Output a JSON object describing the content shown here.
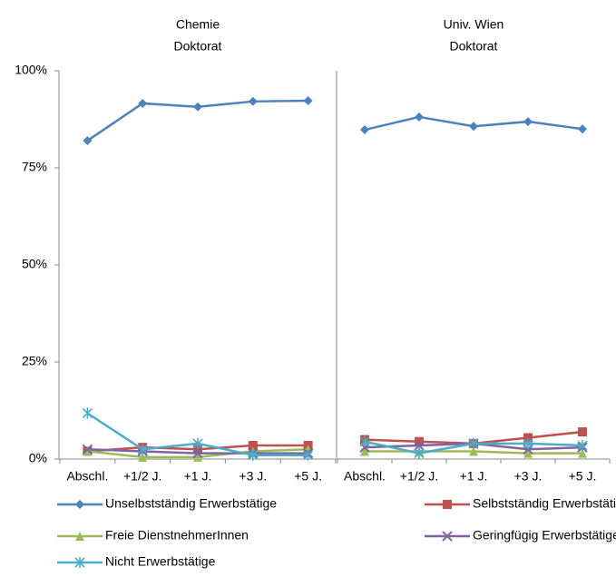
{
  "chart_data": [
    {
      "type": "line",
      "title": [
        "Chemie",
        "Doktorat"
      ],
      "categories": [
        "Abschl.",
        "+1/2 J.",
        "+1 J.",
        "+3 J.",
        "+5 J."
      ],
      "ylim": [
        0,
        100
      ],
      "yticks": [
        {
          "value": 0,
          "label": "0%"
        },
        {
          "value": 25,
          "label": "25%"
        },
        {
          "value": 50,
          "label": "50%"
        },
        {
          "value": 75,
          "label": "75%"
        },
        {
          "value": 100,
          "label": "100%"
        }
      ],
      "series": [
        {
          "name": "Unselbstständig Erwerbstätige",
          "color": "#4F81BD",
          "marker": "diamond",
          "values": [
            82.0,
            91.6,
            90.7,
            92.1,
            92.3
          ]
        },
        {
          "name": "Selbstständig Erwerbstätige",
          "color": "#C0504D",
          "marker": "square",
          "values": [
            2.0,
            3.0,
            2.5,
            3.5,
            3.5
          ]
        },
        {
          "name": "Freie DienstnehmerInnen",
          "color": "#9BBB59",
          "marker": "triangle",
          "values": [
            2.0,
            0.5,
            0.5,
            2.0,
            2.5
          ]
        },
        {
          "name": "Geringfügig Erwerbstätige",
          "color": "#8064A2",
          "marker": "x",
          "values": [
            2.5,
            2.0,
            1.5,
            1.5,
            1.5
          ]
        },
        {
          "name": "Nicht Erwerbstätige",
          "color": "#4BACC6",
          "marker": "star",
          "values": [
            11.8,
            2.5,
            4.0,
            1.0,
            1.0
          ]
        }
      ]
    },
    {
      "type": "line",
      "title": [
        "Univ. Wien",
        "Doktorat"
      ],
      "categories": [
        "Abschl.",
        "+1/2 J.",
        "+1 J.",
        "+3 J.",
        "+5 J."
      ],
      "ylim": [
        0,
        100
      ],
      "series": [
        {
          "color": "#4F81BD",
          "marker": "diamond",
          "values": [
            84.8,
            88.1,
            85.7,
            86.9,
            85.0
          ]
        },
        {
          "color": "#C0504D",
          "marker": "square",
          "values": [
            5.0,
            4.5,
            4.0,
            5.5,
            7.0
          ]
        },
        {
          "color": "#9BBB59",
          "marker": "triangle",
          "values": [
            2.0,
            2.0,
            2.0,
            1.5,
            1.5
          ]
        },
        {
          "color": "#8064A2",
          "marker": "x",
          "values": [
            3.0,
            3.5,
            4.0,
            2.5,
            3.0
          ]
        },
        {
          "color": "#4BACC6",
          "marker": "star",
          "values": [
            4.5,
            1.5,
            4.0,
            4.0,
            3.5
          ]
        }
      ]
    }
  ]
}
